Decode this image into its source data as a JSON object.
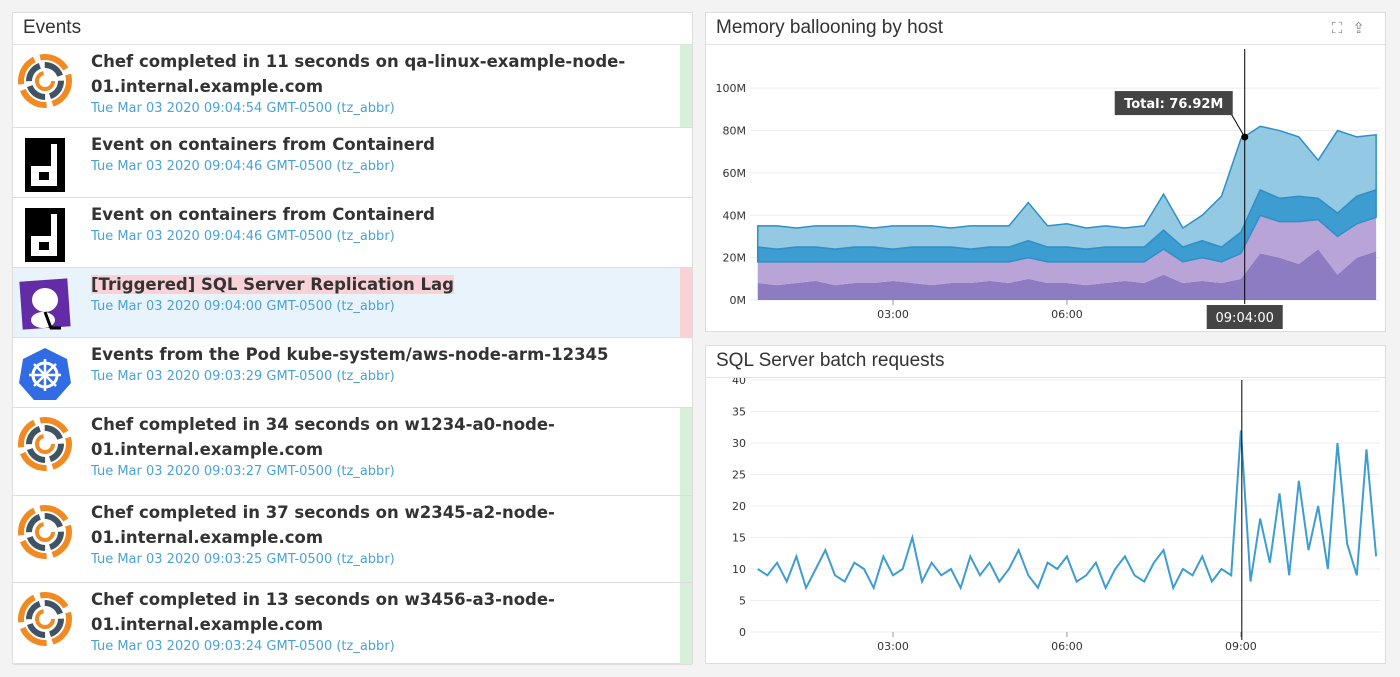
{
  "events": {
    "title": "Events",
    "items": [
      {
        "icon": "chef-icon",
        "title": "Chef completed in 11 seconds on qa-linux-example-node-01.internal.example.com",
        "date": "Tue Mar 03 2020 09:04:54 GMT-0500 (tz_abbr)",
        "status": "success",
        "h": 83
      },
      {
        "icon": "containerd-icon",
        "title": "Event on containers from Containerd",
        "date": "Tue Mar 03 2020 09:04:46 GMT-0500 (tz_abbr)",
        "status": "none",
        "h": 70
      },
      {
        "icon": "containerd-icon",
        "title": "Event on containers from Containerd",
        "date": "Tue Mar 03 2020 09:04:46 GMT-0500 (tz_abbr)",
        "status": "none",
        "h": 70
      },
      {
        "icon": "datadog-icon",
        "title": "[Triggered] SQL Server Replication Lag",
        "date": "Tue Mar 03 2020 09:04:00 GMT-0500 (tz_abbr)",
        "status": "error",
        "h": 70
      },
      {
        "icon": "kubernetes-icon",
        "title": "Events from the Pod kube-system/aws-node-arm-12345",
        "date": "Tue Mar 03 2020 09:03:29 GMT-0500 (tz_abbr)",
        "status": "none",
        "h": 70
      },
      {
        "icon": "chef-icon",
        "title": "Chef completed in 34 seconds on w1234-a0-node-01.internal.example.com",
        "date": "Tue Mar 03 2020 09:03:27 GMT-0500 (tz_abbr)",
        "status": "success",
        "h": 88
      },
      {
        "icon": "chef-icon",
        "title": "Chef completed in 37 seconds on w2345-a2-node-01.internal.example.com",
        "date": "Tue Mar 03 2020 09:03:25 GMT-0500 (tz_abbr)",
        "status": "success",
        "h": 87
      },
      {
        "icon": "chef-icon",
        "title": "Chef completed in 13 seconds on w3456-a3-node-01.internal.example.com",
        "date": "Tue Mar 03 2020 09:03:24 GMT-0500 (tz_abbr)",
        "status": "success",
        "h": 82
      }
    ]
  },
  "colors": {
    "success": "#d6f0d9",
    "error": "#f8d2d6",
    "none": "transparent"
  },
  "chart_data": [
    {
      "type": "area",
      "stacked": true,
      "title": "Memory ballooning by host",
      "ylim": [
        0,
        110
      ],
      "yticks": [
        "0M",
        "20M",
        "40M",
        "60M",
        "80M",
        "100M"
      ],
      "ytick_values": [
        0,
        20,
        40,
        60,
        80,
        100
      ],
      "xticks": [
        "03:00",
        "06:00"
      ],
      "xrange": [
        "00:32",
        "11:24"
      ],
      "cursor": {
        "x": "09:04",
        "label": "09:04:00",
        "tooltip": "Total: 76.92M"
      },
      "x": [
        "00:40",
        "01:00",
        "01:20",
        "01:40",
        "02:00",
        "02:20",
        "02:40",
        "03:00",
        "03:20",
        "03:40",
        "04:00",
        "04:20",
        "04:40",
        "05:00",
        "05:20",
        "05:40",
        "06:00",
        "06:20",
        "06:40",
        "07:00",
        "07:20",
        "07:40",
        "08:00",
        "08:20",
        "08:40",
        "09:00",
        "09:20",
        "09:40",
        "10:00",
        "10:20",
        "10:40",
        "11:00",
        "11:20"
      ],
      "series": [
        {
          "color": "#8e7cc3",
          "values": [
            8,
            7,
            8,
            9,
            7,
            8,
            8,
            9,
            8,
            7,
            8,
            8,
            9,
            8,
            10,
            8,
            8,
            7,
            8,
            9,
            8,
            12,
            8,
            9,
            8,
            10,
            22,
            20,
            17,
            24,
            12,
            20,
            23
          ]
        },
        {
          "color": "#b9a4d8",
          "values": [
            10,
            11,
            10,
            9,
            11,
            10,
            10,
            9,
            10,
            11,
            10,
            10,
            9,
            10,
            10,
            10,
            10,
            11,
            10,
            9,
            10,
            12,
            10,
            11,
            10,
            12,
            18,
            17,
            20,
            14,
            18,
            16,
            16
          ]
        },
        {
          "color": "#3d9dd1",
          "values": [
            7,
            6,
            7,
            7,
            6,
            7,
            7,
            6,
            7,
            7,
            7,
            6,
            7,
            7,
            8,
            7,
            7,
            6,
            7,
            7,
            7,
            9,
            7,
            8,
            7,
            10,
            12,
            11,
            12,
            10,
            11,
            13,
            13
          ]
        },
        {
          "color": "#93c9e3",
          "values": [
            10,
            11,
            9,
            10,
            11,
            10,
            9,
            11,
            10,
            10,
            9,
            11,
            10,
            10,
            18,
            10,
            11,
            10,
            10,
            9,
            10,
            17,
            9,
            12,
            24,
            44,
            30,
            32,
            28,
            18,
            39,
            28,
            26
          ]
        }
      ]
    },
    {
      "type": "line",
      "title": "SQL Server batch requests",
      "ylim": [
        0,
        40
      ],
      "yticks": [
        "0",
        "5",
        "10",
        "15",
        "20",
        "25",
        "30",
        "35",
        "40"
      ],
      "ytick_values": [
        0,
        5,
        10,
        15,
        20,
        25,
        30,
        35,
        40
      ],
      "xticks": [
        "03:00",
        "06:00",
        "09:00"
      ],
      "xrange": [
        "00:32",
        "11:24"
      ],
      "cursor": {
        "x": "09:01"
      },
      "x_start": "00:40",
      "x_step_minutes": 10,
      "series": [
        {
          "color": "#3d9dd1",
          "values": [
            10,
            9,
            11,
            8,
            12,
            7,
            10,
            13,
            9,
            8,
            11,
            10,
            7,
            12,
            9,
            10,
            15,
            8,
            11,
            9,
            10,
            7,
            12,
            9,
            11,
            8,
            10,
            13,
            9,
            7,
            11,
            10,
            12,
            8,
            9,
            11,
            7,
            10,
            12,
            9,
            8,
            11,
            13,
            7,
            10,
            9,
            12,
            8,
            10,
            9,
            32,
            8,
            18,
            11,
            22,
            9,
            24,
            13,
            20,
            10,
            30,
            14,
            9,
            29,
            12
          ]
        }
      ]
    }
  ]
}
